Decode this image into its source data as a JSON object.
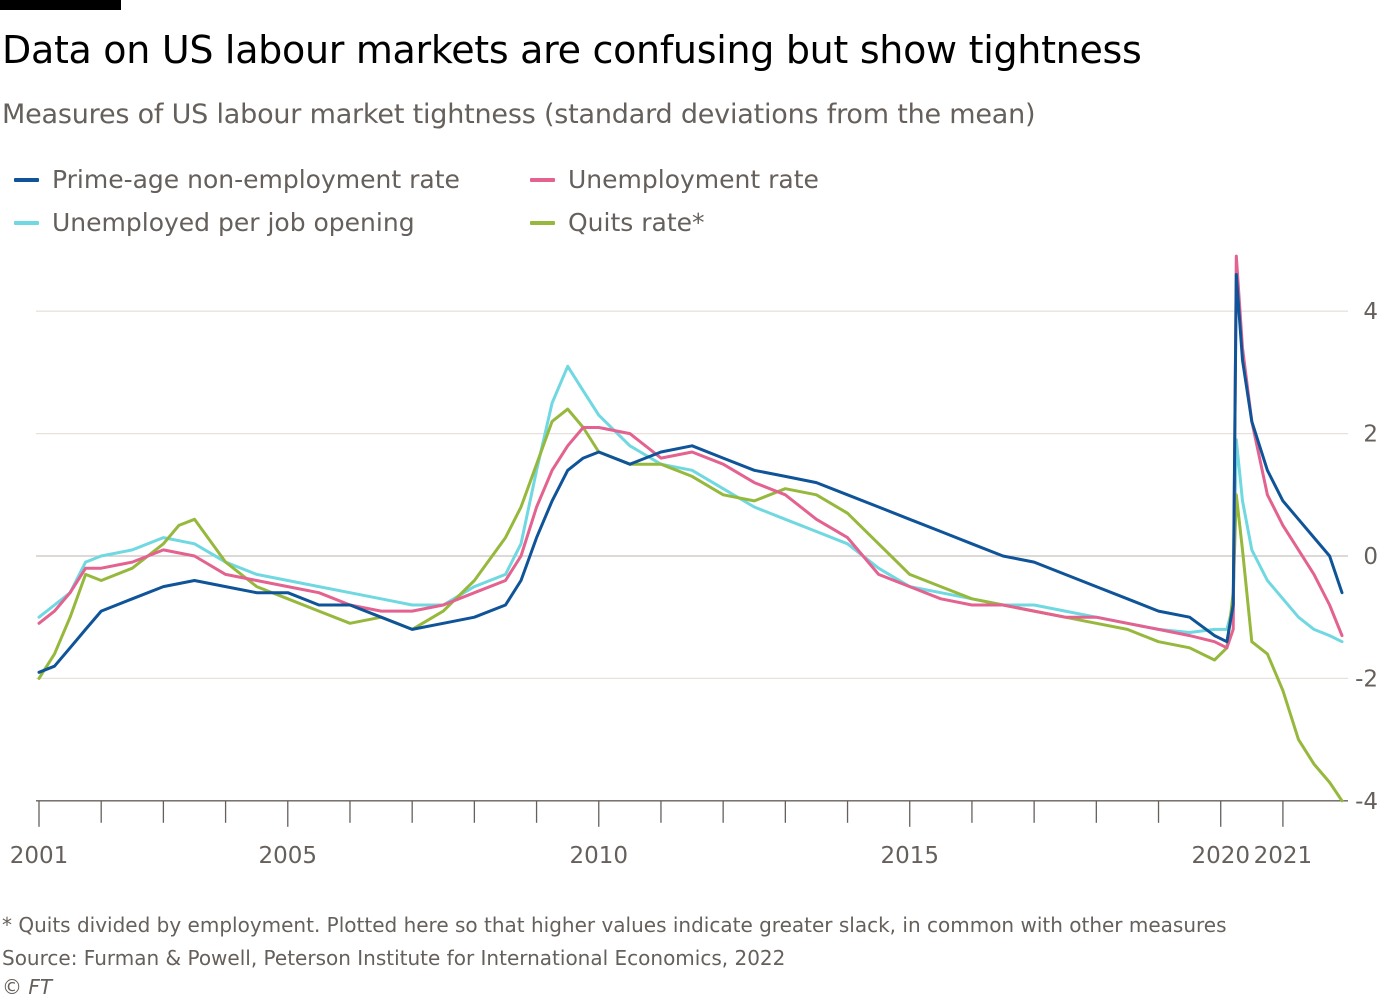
{
  "header": {
    "title": "Data on US labour markets are confusing but show tightness",
    "subtitle": "Measures of US labour market tightness (standard deviations from the mean)"
  },
  "legend": [
    {
      "label": "Prime-age non-employment rate",
      "color": "#0f5499"
    },
    {
      "label": "Unemployment rate",
      "color": "#e3628f"
    },
    {
      "label": "Unemployed per job opening",
      "color": "#6fd8e0"
    },
    {
      "label": "Quits rate*",
      "color": "#96b83d"
    }
  ],
  "footer": {
    "note": "* Quits divided by employment. Plotted here so that higher values indicate greater slack, in common with other measures",
    "source": "Source: Furman & Powell, Peterson Institute for International Economics, 2022",
    "copyright": "© FT"
  },
  "chart_data": {
    "type": "line",
    "title": "Data on US labour markets are confusing but show tightness",
    "subtitle": "Measures of US labour market tightness (standard deviations from the mean)",
    "xlabel": "",
    "ylabel": "",
    "xlim": [
      2001.0,
      2021.95
    ],
    "ylim": [
      -4,
      4.9
    ],
    "x_ticks": [
      2001,
      2005,
      2010,
      2015,
      2020,
      2021
    ],
    "y_ticks": [
      4,
      2,
      0,
      -2,
      -4
    ],
    "grid": true,
    "legend_position": "top-left",
    "series": [
      {
        "name": "Prime-age non-employment rate",
        "color": "#0f5499",
        "x": [
          2001.0,
          2001.25,
          2001.5,
          2001.75,
          2002.0,
          2002.5,
          2003.0,
          2003.5,
          2004.0,
          2004.5,
          2005.0,
          2005.5,
          2006.0,
          2006.5,
          2007.0,
          2007.5,
          2008.0,
          2008.5,
          2008.75,
          2009.0,
          2009.25,
          2009.5,
          2009.75,
          2010.0,
          2010.5,
          2011.0,
          2011.5,
          2012.0,
          2012.5,
          2013.0,
          2013.5,
          2014.0,
          2014.5,
          2015.0,
          2015.5,
          2016.0,
          2016.5,
          2017.0,
          2017.5,
          2018.0,
          2018.5,
          2019.0,
          2019.5,
          2019.9,
          2020.1,
          2020.2,
          2020.25,
          2020.35,
          2020.5,
          2020.75,
          2021.0,
          2021.25,
          2021.5,
          2021.75,
          2021.95
        ],
        "y": [
          -1.9,
          -1.8,
          -1.5,
          -1.2,
          -0.9,
          -0.7,
          -0.5,
          -0.4,
          -0.5,
          -0.6,
          -0.6,
          -0.8,
          -0.8,
          -1.0,
          -1.2,
          -1.1,
          -1.0,
          -0.8,
          -0.4,
          0.3,
          0.9,
          1.4,
          1.6,
          1.7,
          1.5,
          1.7,
          1.8,
          1.6,
          1.4,
          1.3,
          1.2,
          1.0,
          0.8,
          0.6,
          0.4,
          0.2,
          0.0,
          -0.1,
          -0.3,
          -0.5,
          -0.7,
          -0.9,
          -1.0,
          -1.3,
          -1.4,
          -0.8,
          4.6,
          3.2,
          2.2,
          1.4,
          0.9,
          0.6,
          0.3,
          0.0,
          -0.6
        ]
      },
      {
        "name": "Unemployment rate",
        "color": "#e3628f",
        "x": [
          2001.0,
          2001.25,
          2001.5,
          2001.75,
          2002.0,
          2002.5,
          2003.0,
          2003.5,
          2004.0,
          2004.5,
          2005.0,
          2005.5,
          2006.0,
          2006.5,
          2007.0,
          2007.5,
          2008.0,
          2008.5,
          2008.75,
          2009.0,
          2009.25,
          2009.5,
          2009.75,
          2010.0,
          2010.5,
          2011.0,
          2011.5,
          2012.0,
          2012.5,
          2013.0,
          2013.5,
          2014.0,
          2014.5,
          2015.0,
          2015.5,
          2016.0,
          2016.5,
          2017.0,
          2017.5,
          2018.0,
          2018.5,
          2019.0,
          2019.5,
          2019.9,
          2020.1,
          2020.2,
          2020.25,
          2020.35,
          2020.5,
          2020.75,
          2021.0,
          2021.25,
          2021.5,
          2021.75,
          2021.95
        ],
        "y": [
          -1.1,
          -0.9,
          -0.6,
          -0.2,
          -0.2,
          -0.1,
          0.1,
          0.0,
          -0.3,
          -0.4,
          -0.5,
          -0.6,
          -0.8,
          -0.9,
          -0.9,
          -0.8,
          -0.6,
          -0.4,
          0.0,
          0.8,
          1.4,
          1.8,
          2.1,
          2.1,
          2.0,
          1.6,
          1.7,
          1.5,
          1.2,
          1.0,
          0.6,
          0.3,
          -0.3,
          -0.5,
          -0.7,
          -0.8,
          -0.8,
          -0.9,
          -1.0,
          -1.0,
          -1.1,
          -1.2,
          -1.3,
          -1.4,
          -1.5,
          -1.2,
          4.9,
          3.4,
          2.2,
          1.0,
          0.5,
          0.1,
          -0.3,
          -0.8,
          -1.3
        ]
      },
      {
        "name": "Unemployed per job opening",
        "color": "#6fd8e0",
        "x": [
          2001.0,
          2001.25,
          2001.5,
          2001.75,
          2002.0,
          2002.5,
          2003.0,
          2003.5,
          2004.0,
          2004.5,
          2005.0,
          2005.5,
          2006.0,
          2006.5,
          2007.0,
          2007.5,
          2008.0,
          2008.5,
          2008.75,
          2009.0,
          2009.25,
          2009.5,
          2009.75,
          2010.0,
          2010.5,
          2011.0,
          2011.5,
          2012.0,
          2012.5,
          2013.0,
          2013.5,
          2014.0,
          2014.5,
          2015.0,
          2015.5,
          2016.0,
          2016.5,
          2017.0,
          2017.5,
          2018.0,
          2018.5,
          2019.0,
          2019.5,
          2019.9,
          2020.1,
          2020.2,
          2020.25,
          2020.35,
          2020.5,
          2020.75,
          2021.0,
          2021.25,
          2021.5,
          2021.75,
          2021.95
        ],
        "y": [
          -1.0,
          -0.8,
          -0.6,
          -0.1,
          0.0,
          0.1,
          0.3,
          0.2,
          -0.1,
          -0.3,
          -0.4,
          -0.5,
          -0.6,
          -0.7,
          -0.8,
          -0.8,
          -0.5,
          -0.3,
          0.2,
          1.4,
          2.5,
          3.1,
          2.7,
          2.3,
          1.8,
          1.5,
          1.4,
          1.1,
          0.8,
          0.6,
          0.4,
          0.2,
          -0.2,
          -0.5,
          -0.6,
          -0.7,
          -0.8,
          -0.8,
          -0.9,
          -1.0,
          -1.1,
          -1.2,
          -1.25,
          -1.2,
          -1.2,
          -0.8,
          1.9,
          0.9,
          0.1,
          -0.4,
          -0.7,
          -1.0,
          -1.2,
          -1.3,
          -1.4
        ]
      },
      {
        "name": "Quits rate*",
        "color": "#96b83d",
        "x": [
          2001.0,
          2001.25,
          2001.5,
          2001.75,
          2002.0,
          2002.5,
          2003.0,
          2003.25,
          2003.5,
          2004.0,
          2004.5,
          2005.0,
          2005.5,
          2006.0,
          2006.5,
          2007.0,
          2007.5,
          2008.0,
          2008.5,
          2008.75,
          2009.0,
          2009.25,
          2009.5,
          2009.75,
          2010.0,
          2010.5,
          2011.0,
          2011.5,
          2012.0,
          2012.5,
          2013.0,
          2013.5,
          2014.0,
          2014.5,
          2015.0,
          2015.5,
          2016.0,
          2016.5,
          2017.0,
          2017.5,
          2018.0,
          2018.5,
          2019.0,
          2019.5,
          2019.9,
          2020.1,
          2020.2,
          2020.25,
          2020.35,
          2020.5,
          2020.75,
          2021.0,
          2021.25,
          2021.5,
          2021.75,
          2021.95
        ],
        "y": [
          -2.0,
          -1.6,
          -1.0,
          -0.3,
          -0.4,
          -0.2,
          0.2,
          0.5,
          0.6,
          -0.1,
          -0.5,
          -0.7,
          -0.9,
          -1.1,
          -1.0,
          -1.2,
          -0.9,
          -0.4,
          0.3,
          0.8,
          1.5,
          2.2,
          2.4,
          2.1,
          1.7,
          1.5,
          1.5,
          1.3,
          1.0,
          0.9,
          1.1,
          1.0,
          0.7,
          0.2,
          -0.3,
          -0.5,
          -0.7,
          -0.8,
          -0.9,
          -1.0,
          -1.1,
          -1.2,
          -1.4,
          -1.5,
          -1.7,
          -1.5,
          -0.6,
          1.0,
          0.1,
          -1.4,
          -1.6,
          -2.2,
          -3.0,
          -3.4,
          -3.7,
          -4.0
        ]
      }
    ]
  }
}
